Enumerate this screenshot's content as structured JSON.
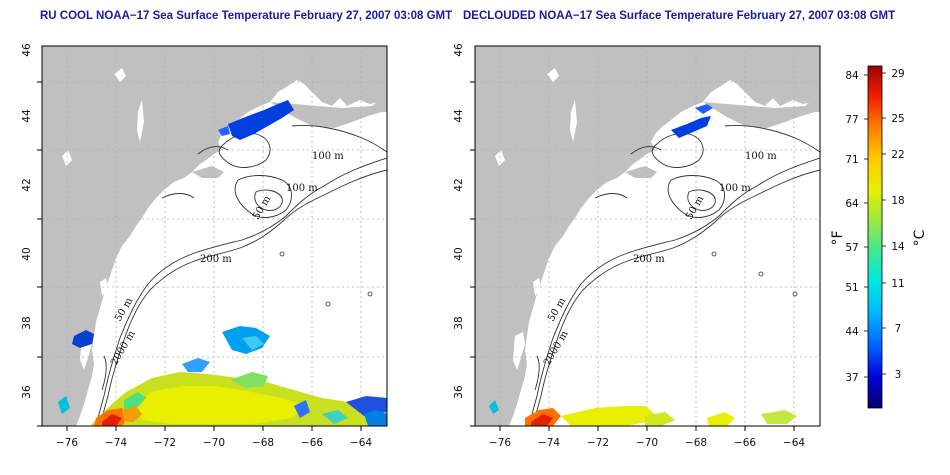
{
  "panels": [
    {
      "title": "RU COOL NOAA−17 Sea Surface Temperature February 27, 2007 03:08 GMT",
      "contour_labels": [
        "100 m",
        "100 m",
        "50 m",
        "200 m",
        "50 m",
        "2000 m"
      ]
    },
    {
      "title": "DECLOUDED NOAA−17 Sea Surface Temperature February 27, 2007 03:08 GMT",
      "contour_labels": [
        "100 m",
        "100 m",
        "50 m",
        "200 m",
        "50 m",
        "2000 m"
      ]
    }
  ],
  "axes": {
    "lon_ticks": [
      "−76",
      "−74",
      "−72",
      "−70",
      "−68",
      "−66",
      "−64"
    ],
    "lat_ticks": [
      "36",
      "38",
      "40",
      "42",
      "44",
      "46"
    ],
    "lon_range": [
      -77,
      -63
    ],
    "lat_range": [
      35,
      46
    ]
  },
  "colorbar": {
    "fahrenheit_label": "°F",
    "celsius_label": "°C",
    "fahrenheit_ticks": [
      "84",
      "77",
      "71",
      "64",
      "57",
      "51",
      "44",
      "37"
    ],
    "celsius_ticks": [
      "29",
      "25",
      "22",
      "18",
      "14",
      "11",
      "7",
      "3"
    ],
    "colors": [
      "#08006e",
      "#0000d8",
      "#0060ff",
      "#00b8ff",
      "#00e8e0",
      "#40e890",
      "#a0e840",
      "#e8f000",
      "#ffc800",
      "#ff8000",
      "#f02000",
      "#a00000"
    ]
  },
  "colors": {
    "land": "#c0c0c0",
    "ocean": "#ffffff",
    "grid": "#b0b0b0",
    "title": "#1a1aa6"
  }
}
